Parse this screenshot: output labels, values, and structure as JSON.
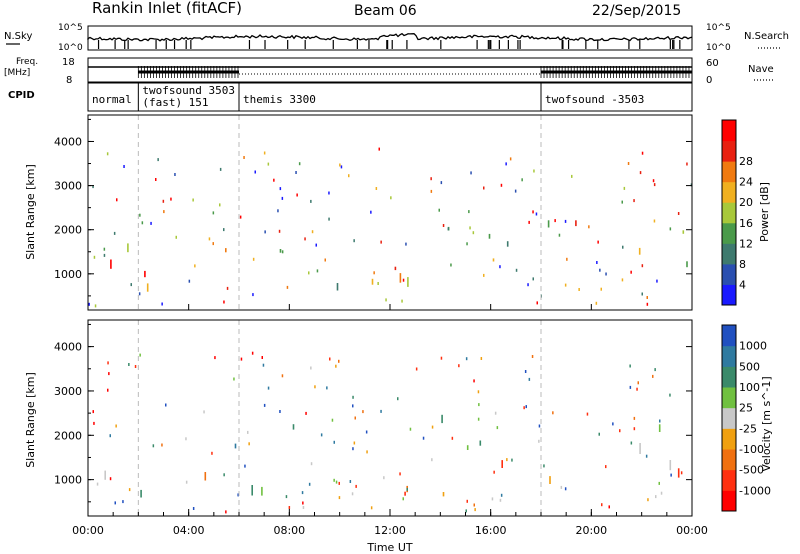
{
  "header": {
    "title": "Rankin Inlet (fitACF)",
    "beam": "Beam 06",
    "date": "22/Sep/2015"
  },
  "status_panels": {
    "nsky_label": "N.Sky",
    "nsearch_label": "N.Search",
    "freq_label": "Freq.",
    "freq_unit": "[MHz]",
    "nave_label": "Nave",
    "cpid_label": "CPID",
    "left_ticks_top": [
      "10^5",
      "10^0"
    ],
    "right_ticks_top": [
      "10^5",
      "10^0"
    ],
    "left_ticks_freq": [
      "18",
      "8"
    ],
    "right_ticks_nave": [
      "60",
      "0"
    ]
  },
  "cpid_segments": [
    {
      "start_hour": 0.0,
      "name": "normal",
      "extra": ""
    },
    {
      "start_hour": 2.0,
      "name": "twofsound  3503",
      "extra": "(fast)  151"
    },
    {
      "start_hour": 6.0,
      "name": "themis  3300",
      "extra": ""
    },
    {
      "start_hour": 18.0,
      "name": "twofsound  -3503",
      "extra": ""
    }
  ],
  "chart_data": [
    {
      "type": "heatmap",
      "panel": "power",
      "ylabel": "Slant Range [km]",
      "ylim": [
        180,
        4600
      ],
      "yticks": [
        "1000",
        "2000",
        "3000",
        "4000"
      ],
      "xlim_hours": [
        0,
        24
      ],
      "colorbar": {
        "label": "Power [dB]",
        "ticks": [
          "4",
          "8",
          "12",
          "16",
          "20",
          "24",
          "28"
        ],
        "colors": [
          "#1a1aff",
          "#2a4fb0",
          "#3e7a6e",
          "#4a9a4a",
          "#a8c83a",
          "#f0b020",
          "#f07a10",
          "#e82010",
          "#ff0000"
        ]
      },
      "mode_change_hours": [
        2,
        6,
        18
      ]
    },
    {
      "type": "heatmap",
      "panel": "velocity",
      "ylabel": "Slant Range [km]",
      "ylim": [
        180,
        4600
      ],
      "yticks": [
        "1000",
        "2000",
        "3000",
        "4000"
      ],
      "xlim_hours": [
        0,
        24
      ],
      "xlabel": "Time UT",
      "xticks": [
        "00:00",
        "04:00",
        "08:00",
        "12:00",
        "16:00",
        "20:00",
        "00:00"
      ],
      "colorbar": {
        "label": "Velocity  [m s^-1]",
        "ticks": [
          "1000",
          "500",
          "100",
          "25",
          "-25",
          "-100",
          "-500",
          "-1000"
        ],
        "colors": [
          "#2050c0",
          "#2f7aa0",
          "#3a8a6a",
          "#70c040",
          "#c8c8c8",
          "#f0a010",
          "#f07010",
          "#ff3010",
          "#ff0000"
        ]
      },
      "mode_change_hours": [
        2,
        6,
        18
      ]
    }
  ]
}
